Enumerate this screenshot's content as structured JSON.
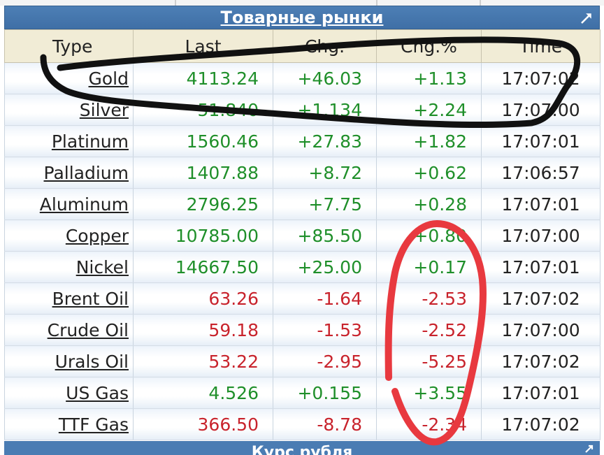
{
  "panel": {
    "title": "Товарные рынки",
    "bottom_title": "Курс рубля"
  },
  "table": {
    "headers": [
      "Type",
      "Last",
      "Chg.",
      "Chg.%",
      "Time"
    ],
    "rows": [
      {
        "type": "Gold",
        "last": "4113.24",
        "chg": "+46.03",
        "chg_pct": "+1.13",
        "time": "17:07:02",
        "trend": "up"
      },
      {
        "type": "Silver",
        "last": "51.840",
        "chg": "+1.134",
        "chg_pct": "+2.24",
        "time": "17:07:00",
        "trend": "up"
      },
      {
        "type": "Platinum",
        "last": "1560.46",
        "chg": "+27.83",
        "chg_pct": "+1.82",
        "time": "17:07:01",
        "trend": "up"
      },
      {
        "type": "Palladium",
        "last": "1407.88",
        "chg": "+8.72",
        "chg_pct": "+0.62",
        "time": "17:06:57",
        "trend": "up"
      },
      {
        "type": "Aluminum",
        "last": "2796.25",
        "chg": "+7.75",
        "chg_pct": "+0.28",
        "time": "17:07:01",
        "trend": "up"
      },
      {
        "type": "Copper",
        "last": "10785.00",
        "chg": "+85.50",
        "chg_pct": "+0.80",
        "time": "17:07:00",
        "trend": "up"
      },
      {
        "type": "Nickel",
        "last": "14667.50",
        "chg": "+25.00",
        "chg_pct": "+0.17",
        "time": "17:07:01",
        "trend": "up"
      },
      {
        "type": "Brent Oil",
        "last": "63.26",
        "chg": "-1.64",
        "chg_pct": "-2.53",
        "time": "17:07:02",
        "trend": "down"
      },
      {
        "type": "Crude Oil",
        "last": "59.18",
        "chg": "-1.53",
        "chg_pct": "-2.52",
        "time": "17:07:00",
        "trend": "down"
      },
      {
        "type": "Urals Oil",
        "last": "53.22",
        "chg": "-2.95",
        "chg_pct": "-5.25",
        "time": "17:07:02",
        "trend": "down"
      },
      {
        "type": "US Gas",
        "last": "4.526",
        "chg": "+0.155",
        "chg_pct": "+3.55",
        "time": "17:07:01",
        "trend": "up"
      },
      {
        "type": "TTF Gas",
        "last": "366.50",
        "chg": "-8.78",
        "chg_pct": "-2.34",
        "time": "17:07:02",
        "trend": "down"
      }
    ]
  },
  "icons": {
    "expand": "expand-arrow-icon"
  },
  "colors": {
    "header_bar": "#4579b0",
    "header_row": "#f1ecd6",
    "positive": "#1f8f2a",
    "negative": "#c8232c",
    "annotation_black": "#111111",
    "annotation_red": "#e8393f"
  }
}
